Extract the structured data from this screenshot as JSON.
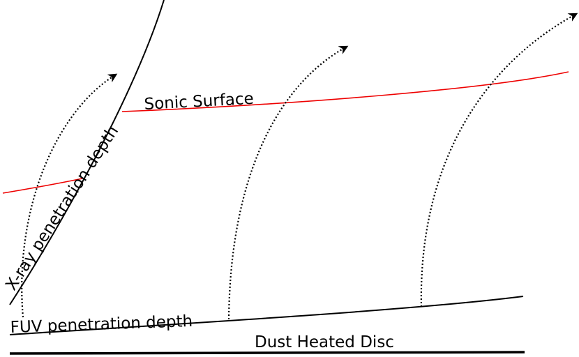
{
  "labels": {
    "sonic_surface": "Sonic Surface",
    "xray_depth": "X-ray penetration depth",
    "fuv_depth": "FUV penetration depth",
    "dust_disc": "Dust Heated Disc"
  }
}
